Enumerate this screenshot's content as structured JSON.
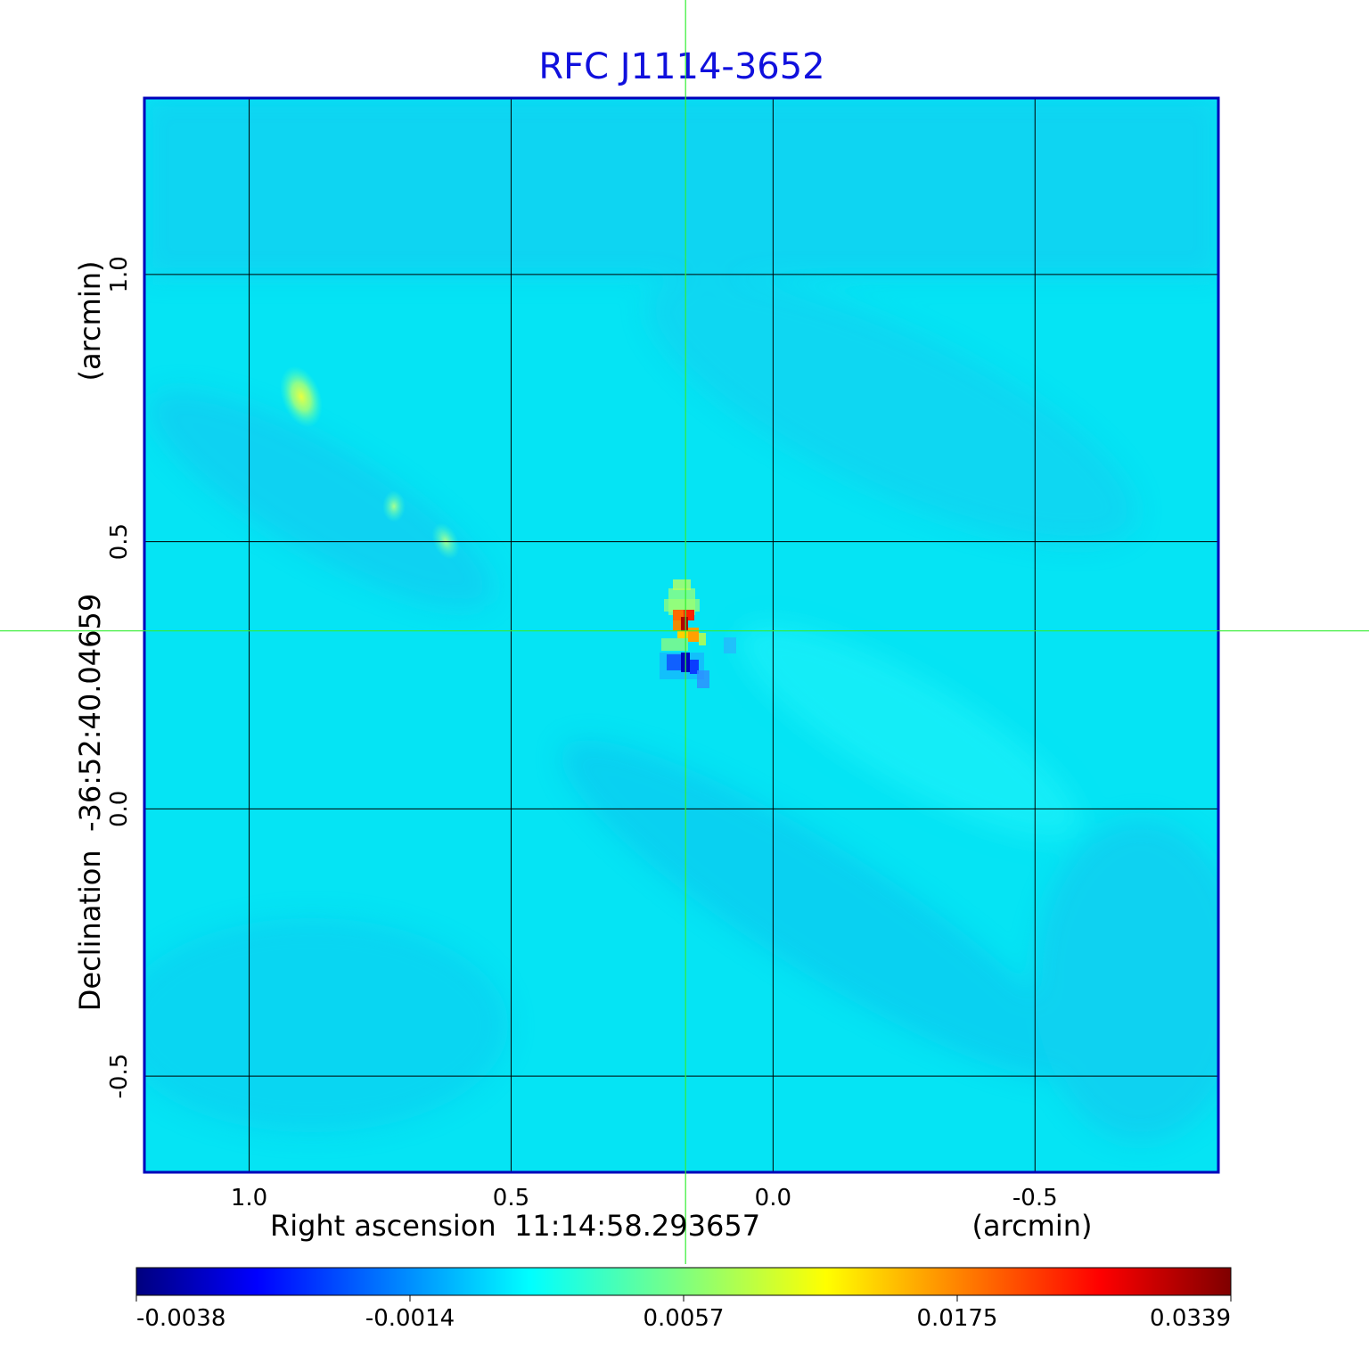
{
  "chart_data": {
    "type": "heatmap",
    "title": "RFC J1114-3652",
    "xlabel": "Right ascension  11:14:58.293657",
    "xunit": "(arcmin)",
    "ylabel": "Declination  -36:52:40.04659",
    "yunit": "(arcmin)",
    "x_ticks": [
      1.0,
      0.5,
      0.0,
      -0.5
    ],
    "x_tick_labels": [
      "1.0",
      "0.5",
      "0.0",
      "-0.5"
    ],
    "y_ticks": [
      1.0,
      0.5,
      0.0,
      -0.5
    ],
    "y_tick_labels": [
      "1.0",
      "0.5",
      "0.0",
      "-0.5"
    ],
    "xlim": [
      1.2,
      -0.85
    ],
    "ylim": [
      -0.68,
      1.33
    ],
    "grid": true,
    "crosshair": {
      "x": 0.167,
      "y": 0.333
    },
    "colorbar": {
      "tick_values": [
        -0.0038,
        -0.0014,
        0.0057,
        0.0175,
        0.0339
      ],
      "tick_labels": [
        "-0.0038",
        "-0.0014",
        "0.0057",
        "0.0175",
        "0.0339"
      ],
      "colormap": "jet"
    },
    "background_level": 0.0,
    "features": [
      {
        "x": 0.175,
        "y": 0.36,
        "value": 0.0339
      },
      {
        "x": 0.16,
        "y": 0.31,
        "value": 0.028
      },
      {
        "x": 0.175,
        "y": 0.27,
        "value": -0.0038
      },
      {
        "x": 0.89,
        "y": 0.77,
        "value": 0.006
      },
      {
        "x": 0.72,
        "y": 0.57,
        "value": 0.004
      },
      {
        "x": 0.62,
        "y": 0.49,
        "value": 0.0035
      }
    ]
  },
  "colors": {
    "title": "#1010dd",
    "frame": "#0000bb",
    "grid": "#000000",
    "crosshair": "#33ee33",
    "background": "#05e4f4"
  }
}
